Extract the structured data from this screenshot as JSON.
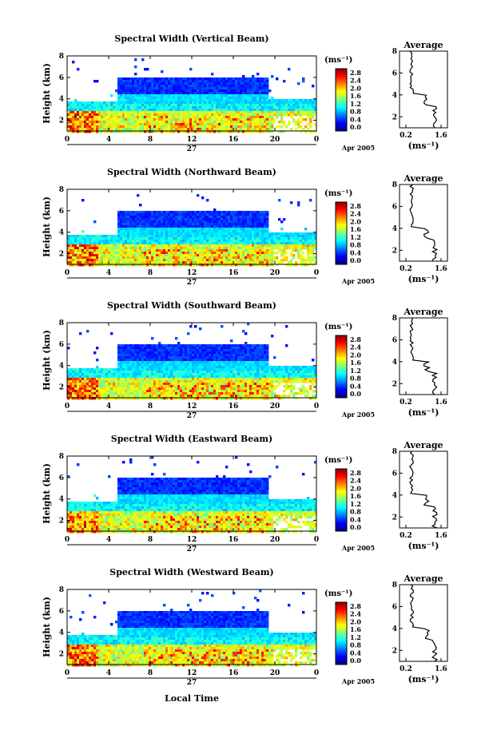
{
  "chart_data": [
    {
      "type": "heatmap",
      "title": "Spectral Width (Vertical Beam)",
      "ylabel": "Height (km)",
      "x_ticks": [
        "0",
        "4",
        "8",
        "12",
        "16",
        "20",
        "0"
      ],
      "day_label": "27",
      "date_label": "Apr 2005",
      "ylim": [
        1,
        8
      ],
      "y_ticks": [
        "2",
        "4",
        "6",
        "8"
      ],
      "colorbar": {
        "unit": "(ms⁻¹)",
        "ticks": [
          "0.0",
          "0.4",
          "0.8",
          "1.2",
          "1.6",
          "2.0",
          "2.4",
          "2.8"
        ]
      },
      "average": {
        "title": "Average",
        "xlabel": "(ms⁻¹)",
        "x_ticks": [
          "0.2",
          "1.6"
        ],
        "y_ticks": [
          "2",
          "4",
          "6",
          "8"
        ]
      }
    },
    {
      "type": "heatmap",
      "title": "Spectral Width (Northward Beam)",
      "ylabel": "Height (km)",
      "x_ticks": [
        "0",
        "4",
        "8",
        "12",
        "16",
        "20",
        "0"
      ],
      "day_label": "27",
      "date_label": "Apr 2005",
      "ylim": [
        1,
        8
      ],
      "y_ticks": [
        "2",
        "4",
        "6",
        "8"
      ],
      "colorbar": {
        "unit": "(ms⁻¹)",
        "ticks": [
          "0.0",
          "0.4",
          "0.8",
          "1.2",
          "1.6",
          "2.0",
          "2.4",
          "2.8"
        ]
      },
      "average": {
        "title": "Average",
        "xlabel": "(ms⁻¹)",
        "x_ticks": [
          "0.2",
          "1.6"
        ],
        "y_ticks": [
          "2",
          "4",
          "6",
          "8"
        ]
      }
    },
    {
      "type": "heatmap",
      "title": "Spectral Width (Southward Beam)",
      "ylabel": "Height (km)",
      "x_ticks": [
        "0",
        "4",
        "8",
        "12",
        "16",
        "20",
        "0"
      ],
      "day_label": "27",
      "date_label": "Apr 2005",
      "ylim": [
        1,
        8
      ],
      "y_ticks": [
        "2",
        "4",
        "6",
        "8"
      ],
      "colorbar": {
        "unit": "(ms⁻¹)",
        "ticks": [
          "0.0",
          "0.4",
          "0.8",
          "1.2",
          "1.6",
          "2.0",
          "2.4",
          "2.8"
        ]
      },
      "average": {
        "title": "Average",
        "xlabel": "(ms⁻¹)",
        "x_ticks": [
          "0.2",
          "1.6"
        ],
        "y_ticks": [
          "2",
          "4",
          "6",
          "8"
        ]
      }
    },
    {
      "type": "heatmap",
      "title": "Spectral Width (Eastward Beam)",
      "ylabel": "Height (km)",
      "x_ticks": [
        "0",
        "4",
        "8",
        "12",
        "16",
        "20",
        "0"
      ],
      "day_label": "27",
      "date_label": "Apr 2005",
      "ylim": [
        1,
        8
      ],
      "y_ticks": [
        "2",
        "4",
        "6",
        "8"
      ],
      "colorbar": {
        "unit": "(ms⁻¹)",
        "ticks": [
          "0.0",
          "0.4",
          "0.8",
          "1.2",
          "1.6",
          "2.0",
          "2.4",
          "2.8"
        ]
      },
      "average": {
        "title": "Average",
        "xlabel": "(ms⁻¹)",
        "x_ticks": [
          "0.2",
          "1.6"
        ],
        "y_ticks": [
          "2",
          "4",
          "6",
          "8"
        ]
      }
    },
    {
      "type": "heatmap",
      "title": "Spectral Width (Westward Beam)",
      "ylabel": "Height (km)",
      "x_ticks": [
        "0",
        "4",
        "8",
        "12",
        "16",
        "20",
        "0"
      ],
      "day_label": "27",
      "date_label": "Apr 2005",
      "ylim": [
        1,
        8
      ],
      "y_ticks": [
        "2",
        "4",
        "6",
        "8"
      ],
      "colorbar": {
        "unit": "(ms⁻¹)",
        "ticks": [
          "0.0",
          "0.4",
          "0.8",
          "1.2",
          "1.6",
          "2.0",
          "2.4",
          "2.8"
        ]
      },
      "average": {
        "title": "Average",
        "xlabel": "(ms⁻¹)",
        "x_ticks": [
          "0.2",
          "1.6"
        ],
        "y_ticks": [
          "2",
          "4",
          "6",
          "8"
        ]
      }
    }
  ],
  "xlabel": "Local Time",
  "colors": {
    "jet": [
      "#000080",
      "#0000ff",
      "#0080ff",
      "#00ffff",
      "#80ff80",
      "#ffff00",
      "#ff8000",
      "#ff0000",
      "#800000"
    ],
    "axis": "#000000",
    "background": "#ffffff"
  }
}
